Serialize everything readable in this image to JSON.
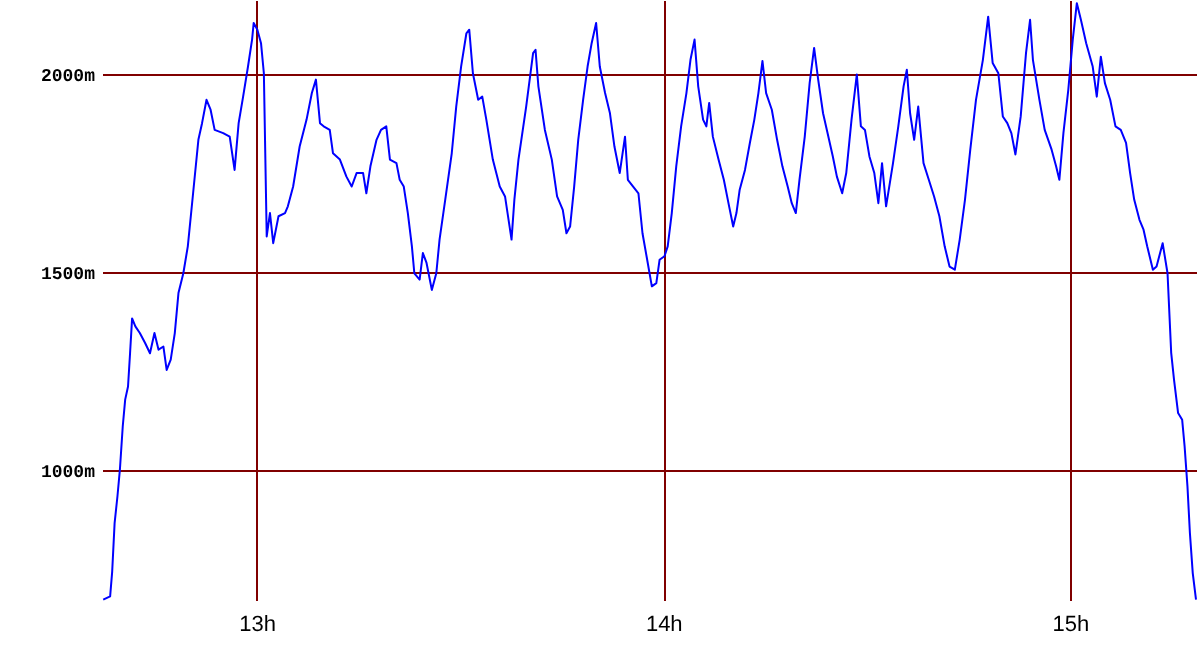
{
  "chart_data": {
    "type": "line",
    "x": [
      12.623,
      12.64,
      12.645,
      12.651,
      12.658,
      12.664,
      12.671,
      12.677,
      12.684,
      12.689,
      12.694,
      12.702,
      12.713,
      12.726,
      12.738,
      12.749,
      12.759,
      12.771,
      12.779,
      12.789,
      12.799,
      12.808,
      12.82,
      12.831,
      12.844,
      12.857,
      12.866,
      12.877,
      12.887,
      12.897,
      12.918,
      12.934,
      12.946,
      12.956,
      12.967,
      12.979,
      12.989,
      12.993,
      13.002,
      13.011,
      13.018,
      13.025,
      13.033,
      13.041,
      13.054,
      13.07,
      13.077,
      13.09,
      13.106,
      13.123,
      13.136,
      13.146,
      13.156,
      13.165,
      13.18,
      13.188,
      13.205,
      13.221,
      13.234,
      13.246,
      13.262,
      13.27,
      13.28,
      13.295,
      13.306,
      13.319,
      13.328,
      13.344,
      13.352,
      13.362,
      13.372,
      13.382,
      13.388,
      13.401,
      13.409,
      13.418,
      13.431,
      13.442,
      13.45,
      13.464,
      13.48,
      13.491,
      13.503,
      13.516,
      13.523,
      13.532,
      13.545,
      13.555,
      13.565,
      13.581,
      13.598,
      13.611,
      13.627,
      13.634,
      13.644,
      13.663,
      13.68,
      13.686,
      13.693,
      13.709,
      13.726,
      13.739,
      13.753,
      13.762,
      13.771,
      13.781,
      13.791,
      13.803,
      13.814,
      13.824,
      13.835,
      13.844,
      13.857,
      13.869,
      13.88,
      13.893,
      13.906,
      13.913,
      13.926,
      13.939,
      13.949,
      13.959,
      13.972,
      13.983,
      13.991,
      14.003,
      14.011,
      14.021,
      14.032,
      14.044,
      14.057,
      14.067,
      14.077,
      14.086,
      14.098,
      14.106,
      14.113,
      14.122,
      14.136,
      14.149,
      14.162,
      14.172,
      14.18,
      14.188,
      14.201,
      14.213,
      14.224,
      14.234,
      14.244,
      14.253,
      14.267,
      14.28,
      14.293,
      14.306,
      14.316,
      14.326,
      14.335,
      14.348,
      14.36,
      14.371,
      14.381,
      14.393,
      14.404,
      14.417,
      14.427,
      14.44,
      14.45,
      14.463,
      14.476,
      14.486,
      14.496,
      14.507,
      14.519,
      14.529,
      14.538,
      14.548,
      14.565,
      14.578,
      14.591,
      14.599,
      14.607,
      14.617,
      14.627,
      14.64,
      14.653,
      14.666,
      14.679,
      14.692,
      14.704,
      14.717,
      14.729,
      14.742,
      14.755,
      14.769,
      14.786,
      14.799,
      14.81,
      14.824,
      14.835,
      14.846,
      14.856,
      14.866,
      14.879,
      14.892,
      14.902,
      14.909,
      14.925,
      14.938,
      14.955,
      14.966,
      14.974,
      14.984,
      14.996,
      15.007,
      15.017,
      15.027,
      15.04,
      15.056,
      15.066,
      15.076,
      15.086,
      15.099,
      15.112,
      15.125,
      15.138,
      15.148,
      15.158,
      15.171,
      15.181,
      15.19,
      15.204,
      15.213,
      15.228,
      15.24,
      15.249,
      15.256,
      15.266,
      15.276,
      15.282,
      15.289,
      15.295,
      15.302,
      15.31
    ],
    "series": [
      {
        "color": "#0000ff",
        "values": [
          674,
          682,
          744,
          867,
          935,
          1002,
          1111,
          1179,
          1212,
          1296,
          1384,
          1364,
          1347,
          1322,
          1296,
          1347,
          1305,
          1313,
          1254,
          1280,
          1347,
          1448,
          1498,
          1566,
          1700,
          1835,
          1877,
          1936,
          1911,
          1860,
          1852,
          1843,
          1759,
          1877,
          1944,
          2020,
          2088,
          2130,
          2113,
          2079,
          2003,
          1591,
          1650,
          1574,
          1642,
          1650,
          1667,
          1717,
          1818,
          1886,
          1953,
          1987,
          1877,
          1869,
          1860,
          1801,
          1785,
          1742,
          1717,
          1751,
          1751,
          1700,
          1768,
          1835,
          1860,
          1869,
          1785,
          1776,
          1734,
          1717,
          1650,
          1566,
          1498,
          1482,
          1549,
          1524,
          1456,
          1498,
          1583,
          1684,
          1801,
          1919,
          2020,
          2104,
          2113,
          2003,
          1936,
          1944,
          1886,
          1785,
          1717,
          1692,
          1583,
          1684,
          1785,
          1919,
          2054,
          2062,
          1970,
          1860,
          1785,
          1692,
          1658,
          1599,
          1616,
          1717,
          1835,
          1936,
          2020,
          2079,
          2130,
          2020,
          1953,
          1902,
          1818,
          1751,
          1843,
          1734,
          1717,
          1700,
          1599,
          1541,
          1465,
          1473,
          1532,
          1541,
          1566,
          1650,
          1768,
          1869,
          1953,
          2037,
          2088,
          1970,
          1886,
          1869,
          1928,
          1843,
          1785,
          1734,
          1667,
          1616,
          1650,
          1709,
          1759,
          1827,
          1886,
          1953,
          2034,
          1953,
          1911,
          1835,
          1768,
          1717,
          1675,
          1650,
          1734,
          1843,
          1978,
          2067,
          1987,
          1902,
          1852,
          1793,
          1742,
          1700,
          1751,
          1886,
          2000,
          1869,
          1860,
          1793,
          1751,
          1675,
          1776,
          1667,
          1776,
          1869,
          1970,
          2012,
          1902,
          1835,
          1919,
          1776,
          1734,
          1692,
          1642,
          1566,
          1515,
          1507,
          1583,
          1684,
          1810,
          1936,
          2037,
          2146,
          2029,
          2003,
          1894,
          1877,
          1852,
          1798,
          1894,
          2054,
          2138,
          2037,
          1936,
          1860,
          1810,
          1768,
          1734,
          1852,
          1961,
          2088,
          2180,
          2138,
          2079,
          2020,
          1944,
          2045,
          1978,
          1936,
          1869,
          1860,
          1827,
          1751,
          1684,
          1633,
          1608,
          1566,
          1507,
          1515,
          1574,
          1498,
          1297,
          1229,
          1145,
          1128,
          1061,
          960,
          842,
          741,
          674
        ]
      }
    ],
    "xlim": [
      12.62,
      15.31
    ],
    "xticks": [
      {
        "value": 13,
        "label": "13h"
      },
      {
        "value": 14,
        "label": "14h"
      },
      {
        "value": 15,
        "label": "15h"
      }
    ],
    "ylim": [
      673,
      2188
    ],
    "yticks": [
      {
        "value": 1000,
        "label": "1000m"
      },
      {
        "value": 1500,
        "label": "1500m"
      },
      {
        "value": 2000,
        "label": "2000m"
      }
    ],
    "grid": true
  }
}
